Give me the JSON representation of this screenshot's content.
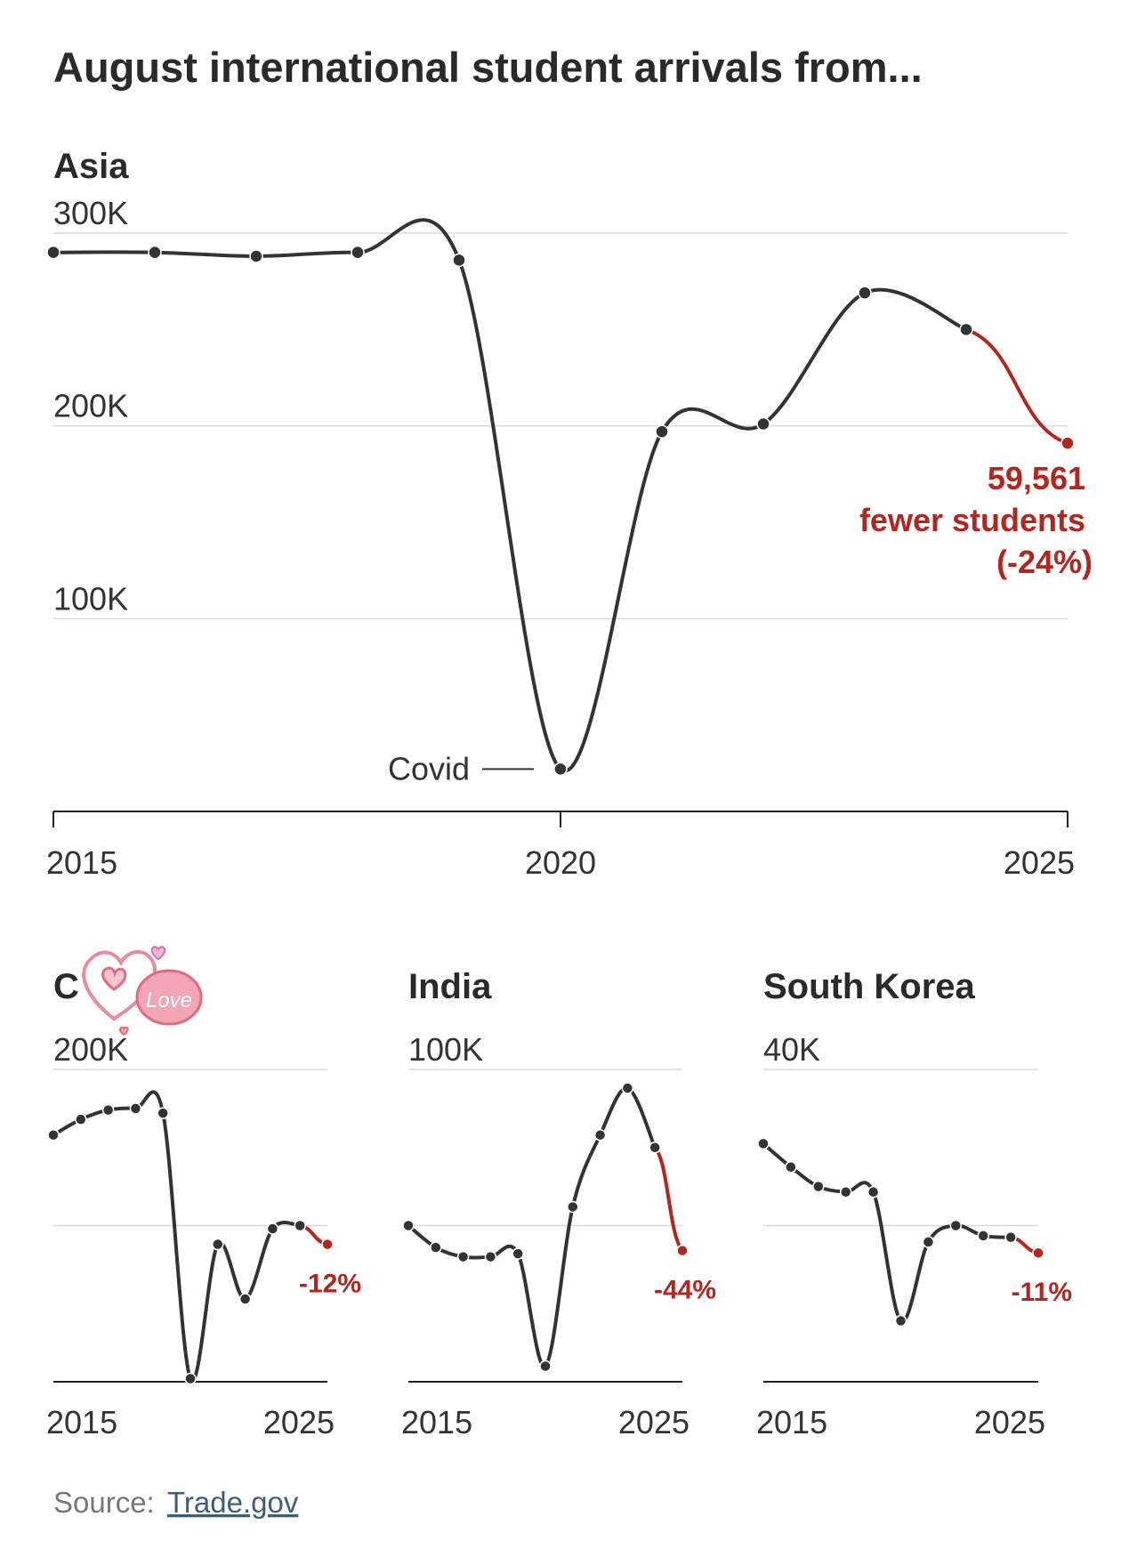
{
  "title": "August international student arrivals from...",
  "source_label": "Source:",
  "source_link": "Trade.gov",
  "colors": {
    "line": "#333333",
    "highlight": "#b3261e",
    "grid": "#d9d9d9"
  },
  "sticker": "decorative heart sticker reading \"love\" covering panel title",
  "chart_data": [
    {
      "type": "line",
      "title": "Asia",
      "xlim": [
        2015,
        2025
      ],
      "ylim": [
        0,
        300000
      ],
      "x_ticks": [
        "2015",
        "2020",
        "2025"
      ],
      "y_ticks": [
        "100K",
        "200K",
        "300K"
      ],
      "y_tick_values": [
        100000,
        200000,
        300000
      ],
      "x": [
        2015,
        2016,
        2017,
        2018,
        2019,
        2020,
        2021,
        2022,
        2023,
        2024,
        2025
      ],
      "values": [
        290000,
        290000,
        288000,
        290000,
        286000,
        22000,
        197000,
        201000,
        269000,
        250000,
        191000
      ],
      "highlight_last_segment": true,
      "annotations": [
        {
          "text": "Covid",
          "x": 2020
        },
        {
          "lines": [
            "59,561",
            "fewer students",
            "(-24%)"
          ],
          "x": 2025
        }
      ]
    },
    {
      "type": "line",
      "title": "C",
      "xlim": [
        2015,
        2025
      ],
      "ylim": [
        0,
        200000
      ],
      "x_ticks": [
        "2015",
        "2025"
      ],
      "y_ticks": [
        "200K"
      ],
      "y_tick_values": [
        200000
      ],
      "y_grid_values": [
        100000,
        200000
      ],
      "x": [
        2015,
        2016,
        2017,
        2018,
        2019,
        2020,
        2021,
        2022,
        2023,
        2024,
        2025
      ],
      "values": [
        158000,
        168000,
        174000,
        175000,
        172000,
        2000,
        88000,
        53000,
        98000,
        100000,
        88000
      ],
      "highlight_last_segment": true,
      "annotations": [
        {
          "text": "-12%",
          "x": 2025
        }
      ]
    },
    {
      "type": "line",
      "title": "India",
      "xlim": [
        2015,
        2025
      ],
      "ylim": [
        0,
        100000
      ],
      "x_ticks": [
        "2015",
        "2025"
      ],
      "y_ticks": [
        "100K"
      ],
      "y_tick_values": [
        100000
      ],
      "y_grid_values": [
        50000,
        100000
      ],
      "x": [
        2015,
        2016,
        2017,
        2018,
        2019,
        2020,
        2021,
        2022,
        2023,
        2024,
        2025
      ],
      "values": [
        50000,
        43000,
        40000,
        40000,
        41000,
        5000,
        56000,
        79000,
        94000,
        75000,
        42000
      ],
      "highlight_last_segment": true,
      "annotations": [
        {
          "text": "-44%",
          "x": 2025
        }
      ]
    },
    {
      "type": "line",
      "title": "South Korea",
      "xlim": [
        2015,
        2025
      ],
      "ylim": [
        0,
        40000
      ],
      "x_ticks": [
        "2015",
        "2025"
      ],
      "y_ticks": [
        "40K"
      ],
      "y_tick_values": [
        40000
      ],
      "y_grid_values": [
        20000,
        40000
      ],
      "x": [
        2015,
        2016,
        2017,
        2018,
        2019,
        2020,
        2021,
        2022,
        2023,
        2024,
        2025
      ],
      "values": [
        30500,
        27500,
        25000,
        24300,
        24300,
        7800,
        17900,
        20000,
        18700,
        18500,
        16500
      ],
      "highlight_last_segment": true,
      "annotations": [
        {
          "text": "-11%",
          "x": 2025
        }
      ]
    }
  ]
}
